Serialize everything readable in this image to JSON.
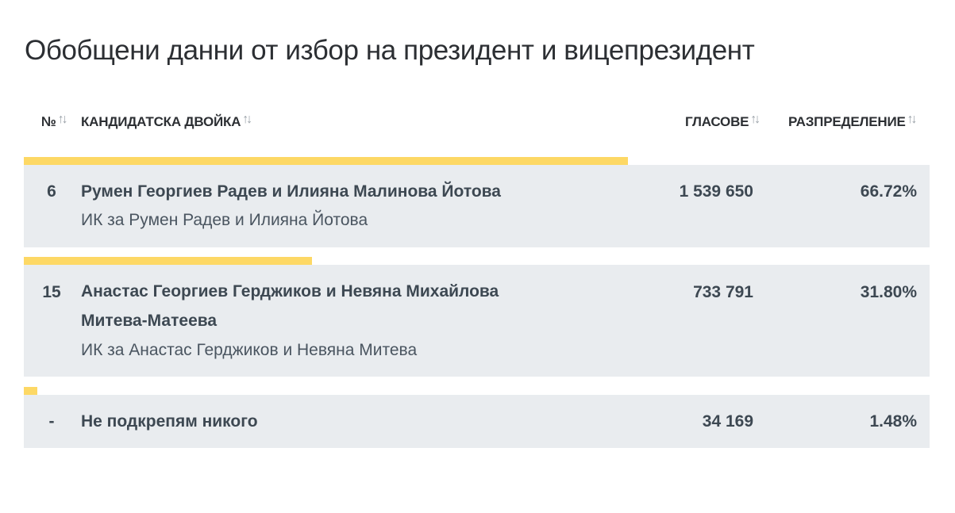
{
  "page_title": "Обобщени данни от избор на президент и вицепрезидент",
  "table": {
    "headers": {
      "number": "№",
      "candidates": "КАНДИДАТСКА ДВОЙКА",
      "votes": "ГЛАСОВЕ",
      "distribution": "РАЗПРЕДЕЛЕНИЕ"
    },
    "sort_icon": "sort-arrows-icon",
    "rows": [
      {
        "number": "6",
        "candidates_line1": "Румен Георгиев Радев и Илияна Малинова Йотова",
        "candidates_line2": "",
        "coalition": "ИК за Румен Радев и Илияна Йотова",
        "votes": "1 539 650",
        "percent": "66.72%",
        "share": 66.72
      },
      {
        "number": "15",
        "candidates_line1": "Анастас Георгиев Герджиков и Невяна Михайлова",
        "candidates_line2": "Митева-Матеева",
        "coalition": "ИК за Анастас Герджиков и Невяна Митева",
        "votes": "733 791",
        "percent": "31.80%",
        "share": 31.8
      },
      {
        "number": "-",
        "candidates_line1": "Не подкрепям никого",
        "candidates_line2": "",
        "coalition": "",
        "votes": "34 169",
        "percent": "1.48%",
        "share": 1.48
      }
    ]
  },
  "colors": {
    "bar": "#fdd865",
    "row_background": "#e9ecef",
    "text": "#3d4852",
    "sort_icon": "#9aa1a8"
  }
}
